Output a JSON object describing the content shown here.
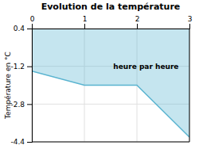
{
  "chart_data": {
    "type": "line",
    "title": "Evolution de la température",
    "ylabel": "Température en °C",
    "x": [
      0,
      1,
      2,
      3
    ],
    "values": [
      -1.4,
      -2.0,
      -2.0,
      -4.2
    ],
    "color": "#5ab4d0",
    "xlim": [
      0,
      3
    ],
    "xticks": [
      0,
      1,
      2,
      3
    ],
    "ylim": [
      -4.4,
      0.4
    ],
    "yticks": [
      0.4,
      -1.2,
      -2.8,
      -4.4
    ],
    "grid": true,
    "annotations": [
      {
        "text": "heure par heure",
        "x": 1.55,
        "y": -1.3
      }
    ]
  }
}
